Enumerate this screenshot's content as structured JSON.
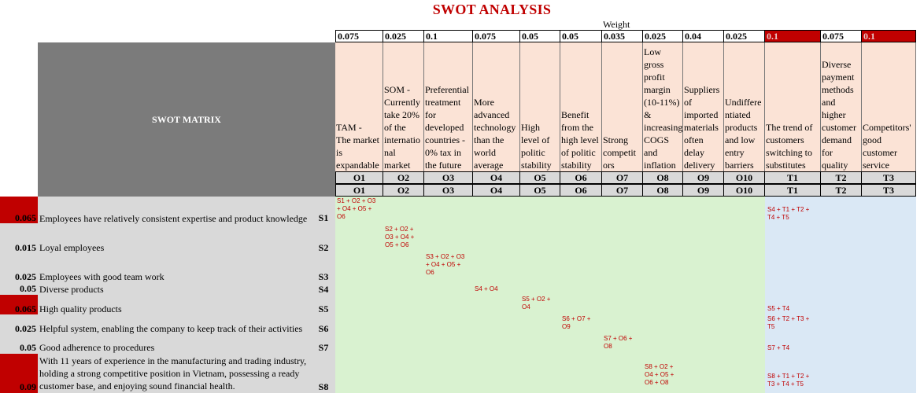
{
  "title": "SWOT ANALYSIS",
  "weight_label": "Weight",
  "matrix_label": "SWOT MATRIX",
  "columns": [
    {
      "weight": "0.075",
      "text": "TAM -\nThe market\nis\nexpandable",
      "code": "O1"
    },
    {
      "weight": "0.025",
      "text": "SOM -\nCurrently\ntake 20%\nof the\ninternatio\nnal\nmarket",
      "code": "O2"
    },
    {
      "weight": "0.1",
      "text": "Preferential\ntreatment\nfor\ndeveloped\ncountries -\n0% tax in\nthe future",
      "code": "O3"
    },
    {
      "weight": "0.075",
      "text": "More\nadvanced\ntechnology\nthan the\nworld\naverage",
      "code": "O4"
    },
    {
      "weight": "0.05",
      "text": "High\nlevel of\npolitic\nstability",
      "code": "O5"
    },
    {
      "weight": "0.05",
      "text": "Benefit\nfrom the\nhigh level\nof politic\nstability",
      "code": "O6"
    },
    {
      "weight": "0.035",
      "text": "Strong\ncompetit\nors",
      "code": "O7"
    },
    {
      "weight": "0.025",
      "text": "Low\ngross\nprofit\nmargin\n(10-11%)\n&\nincreasing\nCOGS\nand\ninflation",
      "code": "O8"
    },
    {
      "weight": "0.04",
      "text": "Suppliers\nof\nimported\nmaterials\noften\ndelay\ndelivery",
      "code": "O9"
    },
    {
      "weight": "0.025",
      "text": "Undiffere\nntiated\nproducts\nand low\nentry\nbarriers",
      "code": "O10"
    },
    {
      "weight": "0.1",
      "text": "The trend of\ncustomers\nswitching to\nsubstitutes",
      "code": "T1"
    },
    {
      "weight": "0.075",
      "text": "Diverse\npayment\nmethods\nand\nhigher\ncustomer\ndemand\nfor\nquality",
      "code": "T2"
    },
    {
      "weight": "0.1",
      "text": "Competitors'\ngood\ncustomer\nservice",
      "code": "T3"
    }
  ],
  "rows": [
    {
      "weight": "0.065",
      "label": "Employees have relatively consistent expertise and product knowledge",
      "code": "S1",
      "combo_o": "S1 + O2 + O3\n+ O4 + O5 +\nO6",
      "combo_t": "S4 + T1 + T2 +\nT4 + T5"
    },
    {
      "weight": "0.015",
      "label": "Loyal employees",
      "code": "S2",
      "combo_o": "S2 + O2 +\nO3 + O4 +\nO5 + O6",
      "combo_t": ""
    },
    {
      "weight": "0.025",
      "label": "Employees with good team work",
      "code": "S3",
      "combo_o": "S3 + O2 + O3\n+ O4 + O5 +\nO6",
      "combo_t": ""
    },
    {
      "weight": "0.05",
      "label": "Diverse products",
      "code": "S4",
      "combo_o": "S4 + O4",
      "combo_t": ""
    },
    {
      "weight": "0.065",
      "label": "High quality products",
      "code": "S5",
      "combo_o": "S5 + O2 +\nO4",
      "combo_t": "S5 + T4"
    },
    {
      "weight": "0.025",
      "label": "Helpful system, enabling the company to keep track of their activities",
      "code": "S6",
      "combo_o": "S6 + O7 +\nO9",
      "combo_t": "S6 + T2 + T3 +\nT5"
    },
    {
      "weight": "0.05",
      "label": "Good adherence to procedures",
      "code": "S7",
      "combo_o": "S7 + O6 +\nO8",
      "combo_t": "S7 + T4"
    },
    {
      "weight": "0.09",
      "label": "With 11 years of experience in the manufacturing and trading industry, holding a strong competitive position in Vietnam, possessing a ready customer base, and enjoying sound financial health.",
      "code": "S8",
      "combo_o": "S8 + O2 +\nO4 + O5 +\nO6 + O8",
      "combo_t": "S8 + T1 + T2 +\nT3 + T4 + T5"
    }
  ]
}
